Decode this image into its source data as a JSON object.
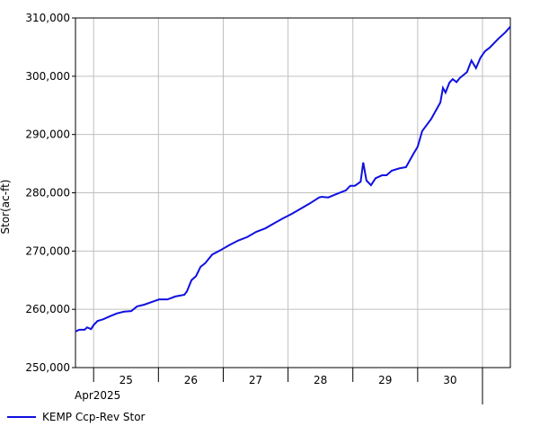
{
  "chart_data": {
    "type": "line",
    "y_label": "Stor(ac-ft)",
    "x_sublabel": "Apr2025",
    "xlim": [
      24.72,
      31.43
    ],
    "xticks": [
      {
        "value": 25,
        "label": "25"
      },
      {
        "value": 26,
        "label": "26"
      },
      {
        "value": 27,
        "label": "27"
      },
      {
        "value": 28,
        "label": "28"
      },
      {
        "value": 29,
        "label": "29"
      },
      {
        "value": 30,
        "label": "30"
      },
      {
        "value": 31,
        "label": null
      }
    ],
    "ylim": [
      250000,
      310000
    ],
    "yticks": [
      {
        "value": 250000,
        "label": "250,000"
      },
      {
        "value": 260000,
        "label": "260,000"
      },
      {
        "value": 270000,
        "label": "270,000"
      },
      {
        "value": 280000,
        "label": "280,000"
      },
      {
        "value": 290000,
        "label": "290,000"
      },
      {
        "value": 300000,
        "label": "300,000"
      },
      {
        "value": 310000,
        "label": "310,000"
      }
    ],
    "grid": true,
    "legend": "bottom-left",
    "series": [
      {
        "name": "KEMP Ccp-Rev Stor",
        "color": "#1010e0",
        "x": [
          24.72,
          24.78,
          24.86,
          24.9,
          24.96,
          25.0,
          25.06,
          25.15,
          25.25,
          25.36,
          25.47,
          25.58,
          25.67,
          25.78,
          25.91,
          26.01,
          26.14,
          26.26,
          26.4,
          26.44,
          26.51,
          26.58,
          26.65,
          26.72,
          26.83,
          26.95,
          27.09,
          27.23,
          27.37,
          27.51,
          27.65,
          27.79,
          27.92,
          28.06,
          28.2,
          28.34,
          28.48,
          28.52,
          28.62,
          28.75,
          28.89,
          28.96,
          29.03,
          29.12,
          29.16,
          29.21,
          29.28,
          29.35,
          29.45,
          29.52,
          29.6,
          29.72,
          29.82,
          29.93,
          30.0,
          30.07,
          30.21,
          30.35,
          30.39,
          30.43,
          30.49,
          30.54,
          30.6,
          30.65,
          30.76,
          30.83,
          30.9,
          30.97,
          31.04,
          31.11,
          31.25,
          31.35,
          31.43
        ],
        "values": [
          256200,
          256500,
          256500,
          256900,
          256600,
          257300,
          258000,
          258300,
          258800,
          259300,
          259600,
          259700,
          260500,
          260800,
          261300,
          261700,
          261700,
          262200,
          262500,
          263100,
          265000,
          265700,
          267300,
          267900,
          269400,
          270100,
          271000,
          271800,
          272400,
          273300,
          273900,
          274800,
          275600,
          276400,
          277300,
          278200,
          279200,
          279300,
          279200,
          279800,
          280400,
          281200,
          281200,
          281900,
          285200,
          282100,
          281300,
          282500,
          283000,
          283000,
          283800,
          284200,
          284400,
          286600,
          287900,
          290600,
          292700,
          295500,
          298000,
          297200,
          298900,
          299500,
          299000,
          299700,
          300700,
          302700,
          301400,
          303200,
          304300,
          304900,
          306500,
          307500,
          308500
        ]
      }
    ]
  }
}
